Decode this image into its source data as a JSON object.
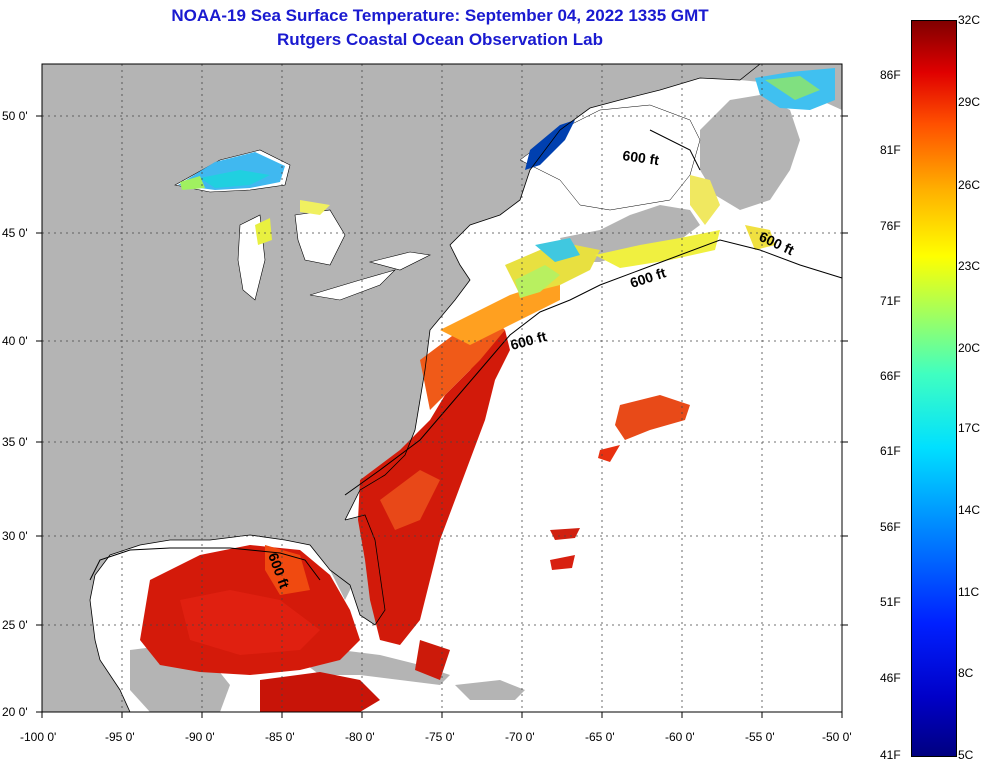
{
  "title": {
    "line1": "NOAA-19 Sea Surface Temperature:  September 04, 2022 1335 GMT",
    "line2": "Rutgers Coastal Ocean Observation Lab"
  },
  "map": {
    "lat_labels": [
      "50 0'",
      "45 0'",
      "40 0'",
      "35 0'",
      "30 0'",
      "25 0'",
      "20 0'"
    ],
    "lon_labels": [
      "-100 0'",
      "-95 0'",
      "-90 0'",
      "-85 0'",
      "-80 0'",
      "-75 0'",
      "-70 0'",
      "-65 0'",
      "-60 0'",
      "-55 0'",
      "-50 0'"
    ],
    "contour_labels": [
      "600 ft",
      "600 ft",
      "600 ft",
      "600 ft",
      "600 ft"
    ],
    "land_color": "#b4b4b4",
    "ocean_color": "#ffffff"
  },
  "colorbar": {
    "fahrenheit": [
      "86F",
      "81F",
      "76F",
      "71F",
      "66F",
      "61F",
      "56F",
      "51F",
      "46F",
      "41F"
    ],
    "celsius": [
      "32C",
      "29C",
      "26C",
      "23C",
      "20C",
      "17C",
      "14C",
      "11C",
      "8C",
      "5C"
    ]
  }
}
